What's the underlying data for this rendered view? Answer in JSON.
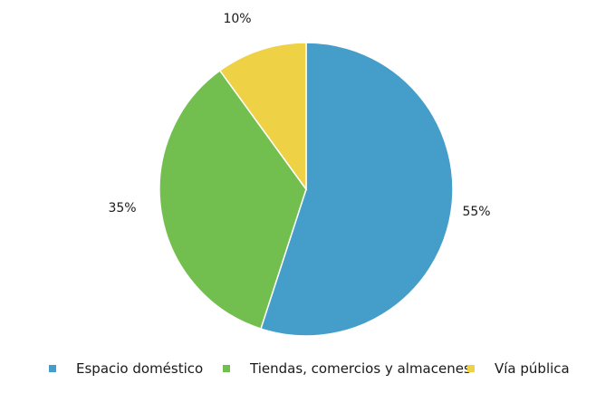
{
  "chart_data": {
    "type": "pie",
    "categories": [
      "Espacio doméstico",
      "Tiendas, comercios y almacenes",
      "Vía pública"
    ],
    "values": [
      55,
      35,
      10
    ],
    "data_labels": [
      "55%",
      "35%",
      "10%"
    ],
    "colors": [
      "#459dc9",
      "#72bf50",
      "#eed145"
    ],
    "start_angle_deg": 0,
    "direction": "clockwise",
    "legend_position": "bottom",
    "title": ""
  }
}
